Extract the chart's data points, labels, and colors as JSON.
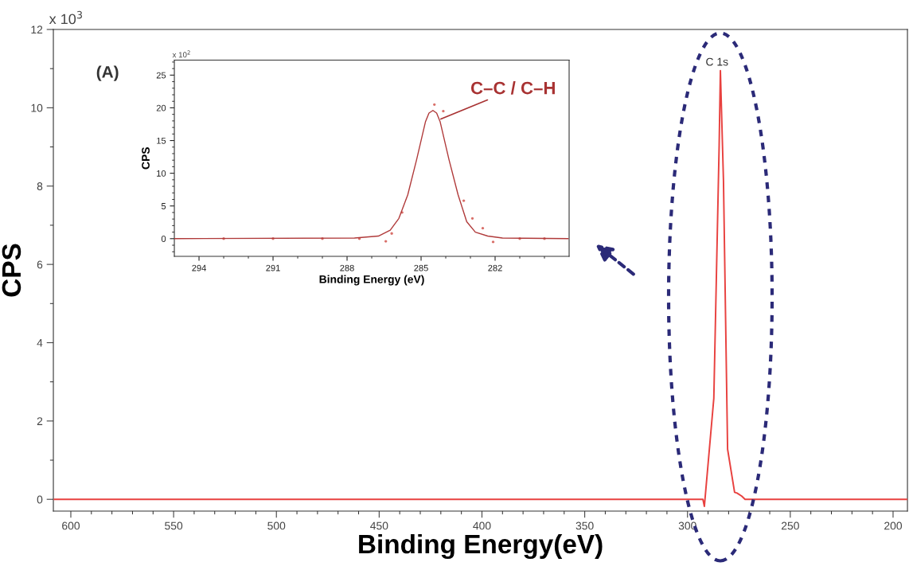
{
  "chart_data": [
    {
      "type": "line",
      "xlabel": "Binding Energy(eV)",
      "ylabel": "CPS",
      "series": [
        {
          "color": "#e8413f",
          "x": [
            608,
            295,
            292.5,
            291.8,
            287.2,
            284.6,
            284.0,
            282.5,
            280.5,
            277.1,
            275.9,
            273.6,
            272,
            193
          ],
          "values": [
            0,
            0,
            0,
            -0.18,
            2.58,
            9.05,
            10.95,
            8.13,
            1.28,
            0.18,
            0.16,
            0.08,
            0,
            0
          ]
        }
      ],
      "xlim": [
        608.5,
        193
      ],
      "ylim": [
        -0.3,
        12
      ],
      "xticks": [
        600,
        550,
        500,
        450,
        400,
        350,
        300,
        250,
        200,
        {
          "value": 590,
          "label": null
        },
        {
          "value": 580,
          "label": null
        },
        {
          "value": 570,
          "label": null
        },
        {
          "value": 560,
          "label": null
        },
        {
          "value": 540,
          "label": null
        },
        {
          "value": 530,
          "label": null
        },
        {
          "value": 520,
          "label": null
        },
        {
          "value": 510,
          "label": null
        },
        {
          "value": 490,
          "label": null
        },
        {
          "value": 480,
          "label": null
        },
        {
          "value": 470,
          "label": null
        },
        {
          "value": 460,
          "label": null
        },
        {
          "value": 440,
          "label": null
        },
        {
          "value": 430,
          "label": null
        },
        {
          "value": 420,
          "label": null
        },
        {
          "value": 410,
          "label": null
        },
        {
          "value": 390,
          "label": null
        },
        {
          "value": 380,
          "label": null
        },
        {
          "value": 370,
          "label": null
        },
        {
          "value": 360,
          "label": null
        },
        {
          "value": 340,
          "label": null
        },
        {
          "value": 330,
          "label": null
        },
        {
          "value": 320,
          "label": null
        },
        {
          "value": 310,
          "label": null
        },
        {
          "value": 290,
          "label": null
        },
        {
          "value": 280,
          "label": null
        },
        {
          "value": 270,
          "label": null
        },
        {
          "value": 260,
          "label": null
        },
        {
          "value": 240,
          "label": null
        },
        {
          "value": 230,
          "label": null
        },
        {
          "value": 220,
          "label": null
        },
        {
          "value": 210,
          "label": null
        }
      ],
      "yticks": [
        0,
        2,
        4,
        6,
        8,
        10,
        12,
        {
          "value": 1,
          "label": null
        },
        {
          "value": 3,
          "label": null
        },
        {
          "value": 5,
          "label": null
        },
        {
          "value": 7,
          "label": null
        },
        {
          "value": 9,
          "label": null
        },
        {
          "value": 11,
          "label": null
        }
      ],
      "annotations": [
        "x 10$^{3}$",
        "(A)",
        "C 1s"
      ]
    },
    {
      "type": "line",
      "xlabel": "Binding Energy (eV)",
      "ylabel": "CPS",
      "series": [
        {
          "color": "#b03a3a",
          "x": [
            295,
            287.7,
            286.73,
            286.25,
            285.9,
            285.54,
            285.18,
            284.82,
            284.68,
            284.52,
            284.37,
            284.23,
            283.87,
            283.5,
            283.15,
            282.8,
            282.3,
            281.7,
            279.04
          ],
          "values": [
            0,
            0.1,
            0.4,
            1.3,
            3.1,
            6.7,
            12.1,
            17.9,
            19.2,
            19.6,
            19.2,
            17.9,
            12.1,
            6.7,
            2.6,
            1.0,
            0.4,
            0.1,
            0
          ]
        },
        {
          "type": "scatter",
          "color": "#d9706a",
          "x": [
            293,
            291,
            289,
            287.5,
            286.43,
            286.19,
            285.77,
            284.46,
            284.1,
            283.27,
            282.92,
            282.5,
            282.08,
            281,
            280
          ],
          "values": [
            0,
            0,
            0,
            0,
            -0.4,
            0.8,
            4.0,
            20.5,
            19.5,
            5.8,
            3.1,
            1.6,
            -0.5,
            0,
            0
          ]
        }
      ],
      "xlim": [
        295,
        279
      ],
      "ylim": [
        -2.7,
        27.3
      ],
      "xticks": [
        294,
        291,
        288,
        285,
        282,
        {
          "value": 293,
          "label": null
        },
        {
          "value": 292,
          "label": null
        },
        {
          "value": 290,
          "label": null
        },
        {
          "value": 289,
          "label": null
        },
        {
          "value": 287,
          "label": null
        },
        {
          "value": 286,
          "label": null
        },
        {
          "value": 284,
          "label": null
        },
        {
          "value": 283,
          "label": null
        },
        {
          "value": 281,
          "label": null
        },
        {
          "value": 280,
          "label": null
        }
      ],
      "yticks": [
        0,
        5,
        10,
        15,
        20,
        25,
        {
          "value": -2,
          "label": null
        },
        {
          "value": -1,
          "label": null
        },
        {
          "value": 1,
          "label": null
        },
        {
          "value": 2,
          "label": null
        },
        {
          "value": 3,
          "label": null
        },
        {
          "value": 4,
          "label": null
        },
        {
          "value": 6,
          "label": null
        },
        {
          "value": 7,
          "label": null
        },
        {
          "value": 8,
          "label": null
        },
        {
          "value": 9,
          "label": null
        },
        {
          "value": 11,
          "label": null
        },
        {
          "value": 12,
          "label": null
        },
        {
          "value": 13,
          "label": null
        },
        {
          "value": 14,
          "label": null
        },
        {
          "value": 16,
          "label": null
        },
        {
          "value": 17,
          "label": null
        },
        {
          "value": 18,
          "label": null
        },
        {
          "value": 19,
          "label": null
        },
        {
          "value": 21,
          "label": null
        },
        {
          "value": 22,
          "label": null
        },
        {
          "value": 23,
          "label": null
        },
        {
          "value": 24,
          "label": null
        },
        {
          "value": 26,
          "label": null
        },
        {
          "value": 27,
          "label": null
        }
      ],
      "annotations": [
        "x 10$^{2}$",
        {
          "text": "C–C / C–H",
          "x": 284.2,
          "y": 18.3
        }
      ]
    }
  ]
}
